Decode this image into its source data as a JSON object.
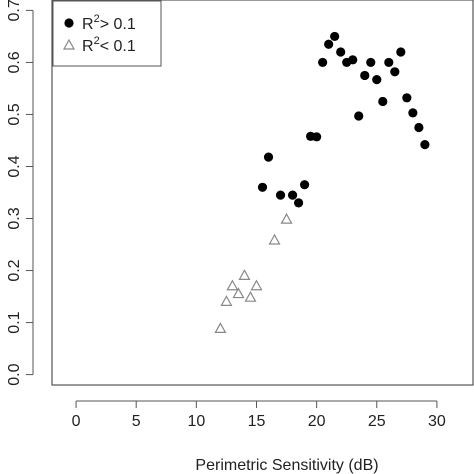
{
  "chart_data": {
    "type": "scatter",
    "xlabel": "Perimetric Sensitivity (dB)",
    "ylabel": "",
    "xlim": [
      -2,
      33
    ],
    "ylim": [
      -0.02,
      0.72
    ],
    "xticks": [
      0,
      5,
      10,
      15,
      20,
      25,
      30
    ],
    "yticks": [
      0.0,
      0.1,
      0.2,
      0.3,
      0.4,
      0.5,
      0.6,
      0.7
    ],
    "x_tick_labels": [
      "0",
      "5",
      "10",
      "15",
      "20",
      "25",
      "30"
    ],
    "y_tick_labels": [
      "0.0",
      "0.1",
      "0.2",
      "0.3",
      "0.4",
      "0.5",
      "0.6",
      "0.7"
    ],
    "grid": false,
    "legend_position": "top-left",
    "legend": [
      {
        "base": "R",
        "sup": "2",
        "rest": "> 0.1",
        "marker": "filled-circle"
      },
      {
        "base": "R",
        "sup": "2",
        "rest": "< 0.1",
        "marker": "open-triangle"
      }
    ],
    "series": [
      {
        "marker": "filled-circle",
        "color": "#000000",
        "points": [
          [
            15.5,
            0.36
          ],
          [
            16.0,
            0.418
          ],
          [
            17.0,
            0.345
          ],
          [
            18.0,
            0.345
          ],
          [
            18.5,
            0.33
          ],
          [
            19.0,
            0.365
          ],
          [
            19.5,
            0.458
          ],
          [
            20.0,
            0.457
          ],
          [
            20.5,
            0.6
          ],
          [
            21.0,
            0.635
          ],
          [
            21.5,
            0.65
          ],
          [
            22.0,
            0.62
          ],
          [
            22.5,
            0.6
          ],
          [
            23.0,
            0.605
          ],
          [
            23.5,
            0.497
          ],
          [
            24.0,
            0.575
          ],
          [
            24.5,
            0.6
          ],
          [
            25.0,
            0.567
          ],
          [
            25.5,
            0.525
          ],
          [
            26.0,
            0.6
          ],
          [
            26.5,
            0.582
          ],
          [
            27.0,
            0.62
          ],
          [
            27.5,
            0.532
          ],
          [
            28.0,
            0.503
          ],
          [
            28.5,
            0.475
          ],
          [
            29.0,
            0.442
          ]
        ]
      },
      {
        "marker": "open-triangle",
        "color": "#888888",
        "points": [
          [
            12.0,
            0.088
          ],
          [
            12.5,
            0.14
          ],
          [
            13.0,
            0.17
          ],
          [
            13.5,
            0.155
          ],
          [
            14.0,
            0.19
          ],
          [
            14.5,
            0.148
          ],
          [
            15.0,
            0.17
          ],
          [
            16.5,
            0.258
          ],
          [
            17.5,
            0.298
          ]
        ]
      }
    ]
  }
}
